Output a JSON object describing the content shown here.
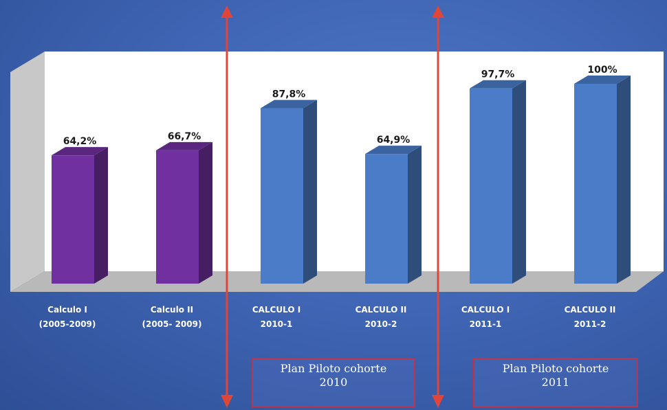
{
  "chart_data": {
    "type": "bar",
    "style": "3d-column",
    "categories": [
      [
        "Calculo I",
        "(2005-2009)"
      ],
      [
        "Calculo II",
        "(2005- 2009)"
      ],
      [
        "CALCULO I",
        "2010-1"
      ],
      [
        "CALCULO II",
        "2010-2"
      ],
      [
        "CALCULO I",
        "2011-1"
      ],
      [
        "CALCULO II",
        "2011-2"
      ]
    ],
    "values": [
      64.2,
      66.7,
      87.8,
      64.9,
      97.7,
      100
    ],
    "value_labels": [
      "64,2%",
      "66,7%",
      "87,8%",
      "64,9%",
      "97,7%",
      "100%"
    ],
    "ylim": [
      0,
      100
    ],
    "title": "",
    "xlabel": "",
    "ylabel": "",
    "grid": false,
    "legend": "none",
    "colors": {
      "historic_bar": "#7030a0",
      "pilot_bar": "#4a7cc7",
      "divider": "#e0453a",
      "note_border": "#c0344a",
      "background": "#3f65b4"
    },
    "annotations": [
      {
        "lines": [
          "Plan Piloto cohorte",
          "2010"
        ]
      },
      {
        "lines": [
          "Plan Piloto cohorte",
          "2011"
        ]
      }
    ]
  }
}
